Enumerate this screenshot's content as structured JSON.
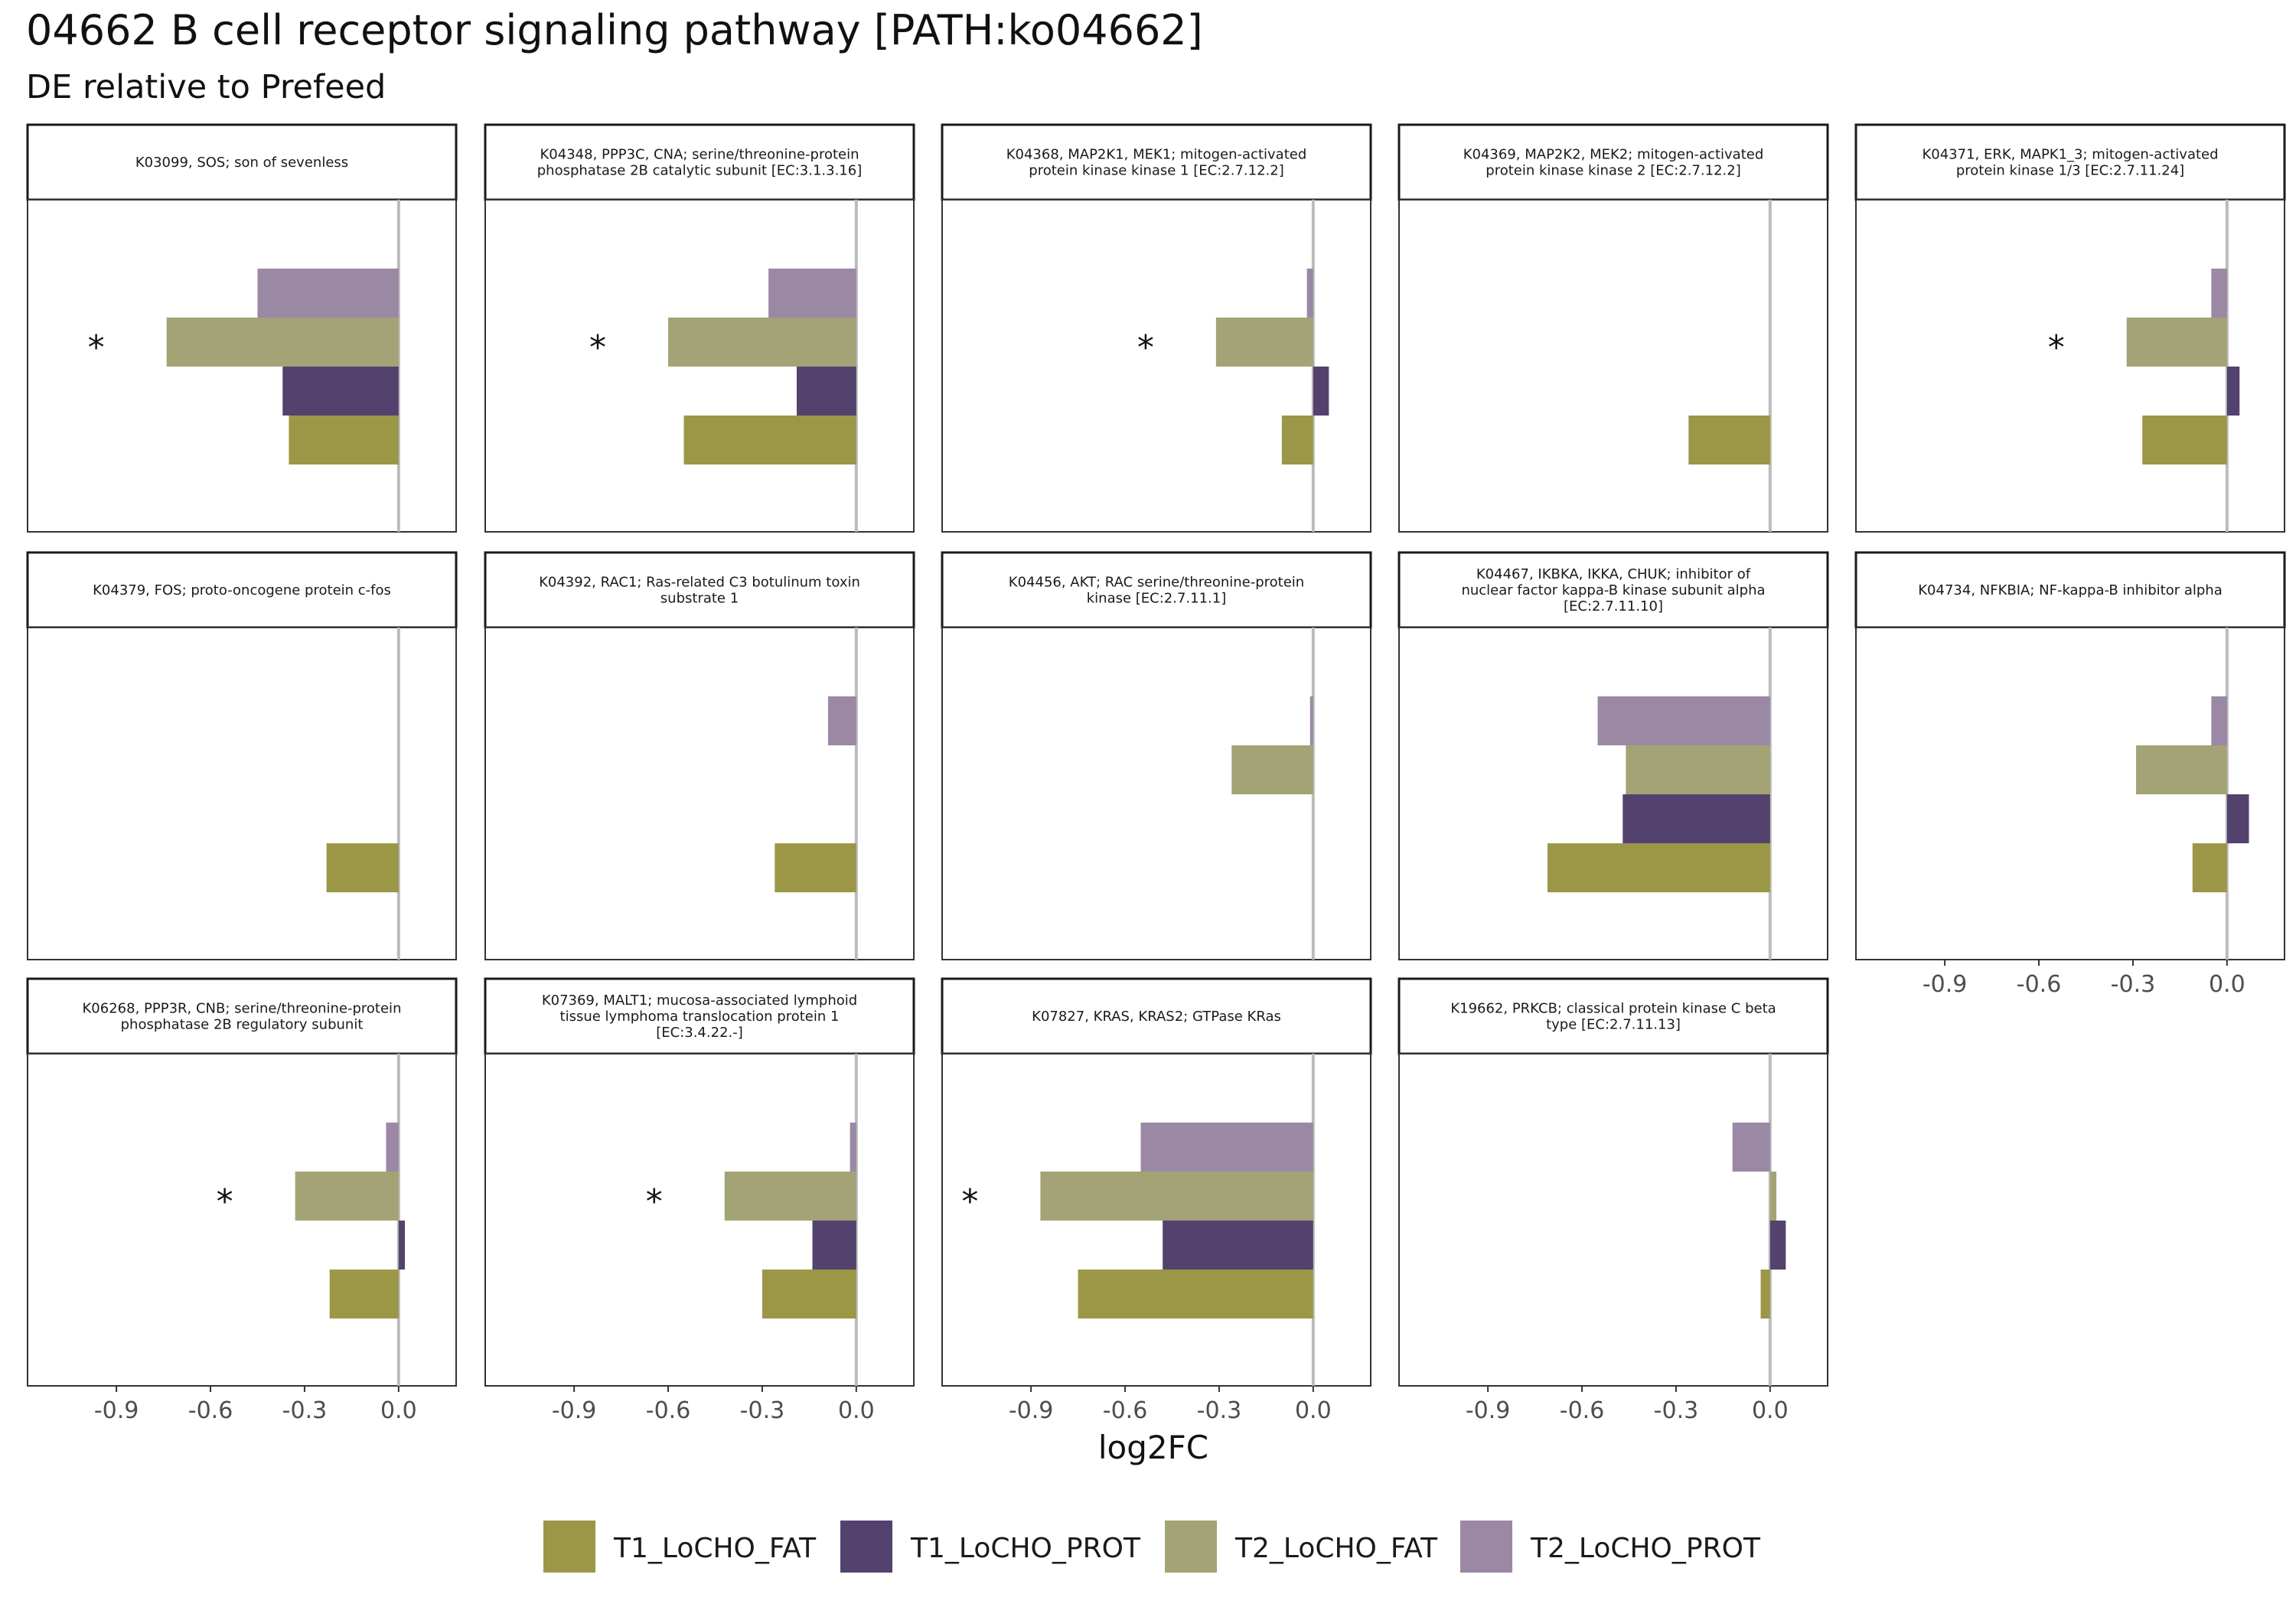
{
  "chart_data": {
    "type": "bar",
    "orientation": "horizontal",
    "title": "04662 B cell receptor signaling pathway [PATH:ko04662]",
    "subtitle": "DE relative to Prefeed",
    "xlabel": "log2FC",
    "xlim": [
      -1.12,
      0.12
    ],
    "x_ticks": [
      "-0.9",
      "-0.6",
      "-0.3",
      "0.0"
    ],
    "x_tick_values": [
      -0.9,
      -0.6,
      -0.3,
      0.0
    ],
    "reference_line": 0,
    "grid": false,
    "legend_position": "bottom",
    "significance_marker": "*",
    "series": [
      {
        "name": "T1_LoCHO_FAT",
        "color": "#9c9747"
      },
      {
        "name": "T1_LoCHO_PROT",
        "color": "#54426e"
      },
      {
        "name": "T2_LoCHO_FAT",
        "color": "#a3a375"
      },
      {
        "name": "T2_LoCHO_PROT",
        "color": "#9b88a5"
      }
    ],
    "panels": [
      {
        "title": "K03099, SOS; son of sevenless",
        "values": {
          "T1_LoCHO_FAT": -0.35,
          "T1_LoCHO_PROT": -0.37,
          "T2_LoCHO_FAT": -0.74,
          "T2_LoCHO_PROT": -0.45
        },
        "significant": [
          "T2_LoCHO_FAT"
        ]
      },
      {
        "title": "K04348, PPP3C, CNA; serine/threonine-protein phosphatase 2B catalytic subunit [EC:3.1.3.16]",
        "values": {
          "T1_LoCHO_FAT": -0.55,
          "T1_LoCHO_PROT": -0.19,
          "T2_LoCHO_FAT": -0.6,
          "T2_LoCHO_PROT": -0.28
        },
        "significant": [
          "T2_LoCHO_FAT"
        ]
      },
      {
        "title": "K04368, MAP2K1, MEK1; mitogen-activated protein kinase kinase 1 [EC:2.7.12.2]",
        "values": {
          "T1_LoCHO_FAT": -0.1,
          "T1_LoCHO_PROT": 0.05,
          "T2_LoCHO_FAT": -0.31,
          "T2_LoCHO_PROT": -0.02
        },
        "significant": [
          "T2_LoCHO_FAT"
        ]
      },
      {
        "title": "K04369, MAP2K2, MEK2; mitogen-activated protein kinase kinase 2 [EC:2.7.12.2]",
        "values": {
          "T1_LoCHO_FAT": -0.26,
          "T1_LoCHO_PROT": null,
          "T2_LoCHO_FAT": null,
          "T2_LoCHO_PROT": null
        },
        "significant": []
      },
      {
        "title": "K04371, ERK, MAPK1_3; mitogen-activated protein kinase 1/3 [EC:2.7.11.24]",
        "values": {
          "T1_LoCHO_FAT": -0.27,
          "T1_LoCHO_PROT": 0.04,
          "T2_LoCHO_FAT": -0.32,
          "T2_LoCHO_PROT": -0.05
        },
        "significant": [
          "T2_LoCHO_FAT"
        ]
      },
      {
        "title": "K04379, FOS; proto-oncogene protein c-fos",
        "values": {
          "T1_LoCHO_FAT": -0.23,
          "T1_LoCHO_PROT": null,
          "T2_LoCHO_FAT": null,
          "T2_LoCHO_PROT": null
        },
        "significant": []
      },
      {
        "title": "K04392, RAC1; Ras-related C3 botulinum toxin substrate 1",
        "values": {
          "T1_LoCHO_FAT": -0.26,
          "T1_LoCHO_PROT": null,
          "T2_LoCHO_FAT": null,
          "T2_LoCHO_PROT": -0.09
        },
        "significant": []
      },
      {
        "title": "K04456, AKT; RAC serine/threonine-protein kinase [EC:2.7.11.1]",
        "values": {
          "T1_LoCHO_FAT": null,
          "T1_LoCHO_PROT": null,
          "T2_LoCHO_FAT": -0.26,
          "T2_LoCHO_PROT": -0.01
        },
        "significant": []
      },
      {
        "title": "K04467, IKBKA, IKKA, CHUK; inhibitor of nuclear factor kappa-B kinase subunit alpha [EC:2.7.11.10]",
        "values": {
          "T1_LoCHO_FAT": -0.71,
          "T1_LoCHO_PROT": -0.47,
          "T2_LoCHO_FAT": -0.46,
          "T2_LoCHO_PROT": -0.55
        },
        "significant": []
      },
      {
        "title": "K04734, NFKBIA; NF-kappa-B inhibitor alpha",
        "values": {
          "T1_LoCHO_FAT": -0.11,
          "T1_LoCHO_PROT": 0.07,
          "T2_LoCHO_FAT": -0.29,
          "T2_LoCHO_PROT": -0.05
        },
        "significant": []
      },
      {
        "title": "K06268, PPP3R, CNB; serine/threonine-protein phosphatase 2B regulatory subunit",
        "values": {
          "T1_LoCHO_FAT": -0.22,
          "T1_LoCHO_PROT": 0.02,
          "T2_LoCHO_FAT": -0.33,
          "T2_LoCHO_PROT": -0.04
        },
        "significant": [
          "T2_LoCHO_FAT"
        ]
      },
      {
        "title": "K07369, MALT1; mucosa-associated lymphoid tissue lymphoma translocation protein 1 [EC:3.4.22.-]",
        "values": {
          "T1_LoCHO_FAT": -0.3,
          "T1_LoCHO_PROT": -0.14,
          "T2_LoCHO_FAT": -0.42,
          "T2_LoCHO_PROT": -0.02
        },
        "significant": [
          "T2_LoCHO_FAT"
        ]
      },
      {
        "title": "K07827, KRAS, KRAS2; GTPase KRas",
        "values": {
          "T1_LoCHO_FAT": -0.75,
          "T1_LoCHO_PROT": -0.48,
          "T2_LoCHO_FAT": -0.87,
          "T2_LoCHO_PROT": -0.55
        },
        "significant": [
          "T2_LoCHO_FAT"
        ]
      },
      {
        "title": "K19662, PRKCB; classical protein kinase C beta type [EC:2.7.11.13]",
        "values": {
          "T1_LoCHO_FAT": -0.03,
          "T1_LoCHO_PROT": 0.05,
          "T2_LoCHO_FAT": 0.02,
          "T2_LoCHO_PROT": -0.12
        },
        "significant": []
      }
    ]
  }
}
